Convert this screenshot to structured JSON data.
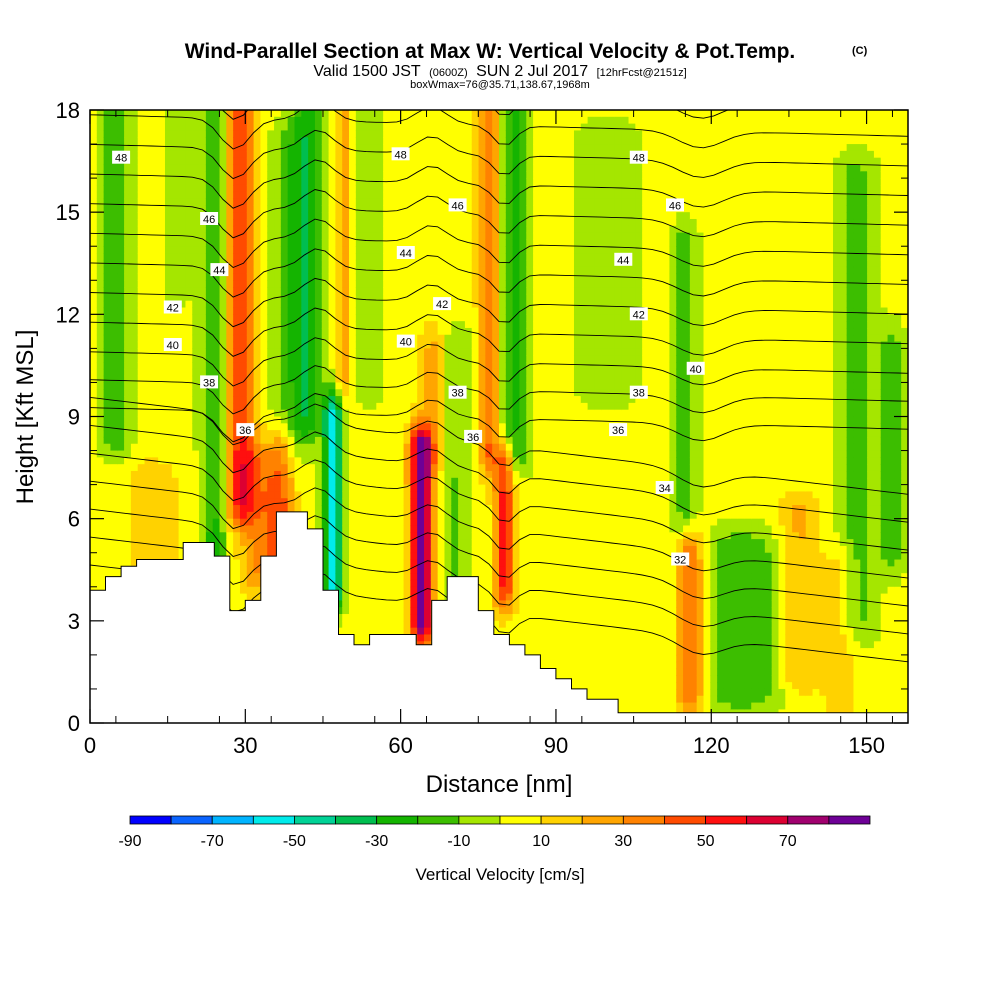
{
  "chart_data": {
    "type": "heatmap",
    "title": "Wind-Parallel Section at Max W: Vertical Velocity & Pot.Temp.",
    "title_mark": "(C)",
    "subtitle_parts": [
      "Valid 1500 JST",
      "(0600Z)",
      "SUN 2 Jul 2017",
      "[12hrFcst@2151z]"
    ],
    "subtitle2": "boxWmax=76@35.71,138.67,1968m",
    "xlabel": "Distance [nm]",
    "ylabel": "Height [Kft MSL]",
    "xlim": [
      0,
      158
    ],
    "ylim": [
      0,
      18
    ],
    "xticks": [
      "0",
      "30",
      "60",
      "90",
      "120",
      "150"
    ],
    "yticks": [
      "0",
      "3",
      "6",
      "9",
      "12",
      "15",
      "18"
    ],
    "colorbar": {
      "label": "Vertical Velocity [cm/s]",
      "tick_labels": [
        "-90",
        "-70",
        "-50",
        "-30",
        "-10",
        "10",
        "30",
        "50",
        "70"
      ],
      "levels": [
        -90,
        -80,
        -70,
        -60,
        -50,
        -40,
        -30,
        -20,
        -10,
        0,
        10,
        20,
        30,
        40,
        50,
        60,
        70,
        80
      ],
      "colors": [
        "#0000ff",
        "#0a64ff",
        "#00b4ff",
        "#00ebeb",
        "#00d296",
        "#00be50",
        "#14b400",
        "#3cbe00",
        "#a5e600",
        "#ffff00",
        "#ffd200",
        "#ffa500",
        "#ff8200",
        "#ff4b00",
        "#ff0f0f",
        "#dc0032",
        "#a0006e",
        "#6e0096"
      ]
    },
    "vertical_velocity_features": [
      {
        "x": 5,
        "ytop": 18,
        "ybot": 8.5,
        "w": 3,
        "peak": -22
      },
      {
        "x": 17,
        "ytop": 18,
        "ybot": 13,
        "w": 2.5,
        "peak": -12
      },
      {
        "x": 24,
        "ytop": 18,
        "ybot": 5,
        "w": 2.6,
        "peak": -28
      },
      {
        "x": 29,
        "ytop": 18,
        "ybot": 6.5,
        "w": 3,
        "peak": 45
      },
      {
        "x": 38,
        "ytop": 17,
        "ybot": 8,
        "w": 3.5,
        "peak": -15
      },
      {
        "x": 42,
        "ytop": 18,
        "ybot": 9,
        "w": 3,
        "peak": -30
      },
      {
        "x": 47,
        "ytop": 9,
        "ybot": 4,
        "w": 1.8,
        "peak": -62
      },
      {
        "x": 49,
        "ytop": 18,
        "ybot": 10,
        "w": 1.6,
        "peak": 20
      },
      {
        "x": 54,
        "ytop": 18,
        "ybot": 10,
        "w": 2.5,
        "peak": -14
      },
      {
        "x": 64,
        "ytop": 8,
        "ybot": 3,
        "w": 2.2,
        "peak": 78
      },
      {
        "x": 66,
        "ytop": 11,
        "ybot": 8,
        "w": 2.5,
        "peak": 18
      },
      {
        "x": 71,
        "ytop": 11,
        "ybot": 3,
        "w": 2.5,
        "peak": -15
      },
      {
        "x": 77,
        "ytop": 18,
        "ybot": 8,
        "w": 2,
        "peak": 35
      },
      {
        "x": 80,
        "ytop": 7.5,
        "ybot": 4,
        "w": 2,
        "peak": 48
      },
      {
        "x": 82,
        "ytop": 18,
        "ybot": 8,
        "w": 3,
        "peak": -26
      },
      {
        "x": 100,
        "ytop": 17,
        "ybot": 10,
        "w": 6,
        "peak": -14
      },
      {
        "x": 116,
        "ytop": 5,
        "ybot": 1,
        "w": 2.5,
        "peak": 45
      },
      {
        "x": 115,
        "ytop": 14,
        "ybot": 6,
        "w": 2.5,
        "peak": -20
      },
      {
        "x": 126,
        "ytop": 5,
        "ybot": 1,
        "w": 9,
        "peak": -22
      },
      {
        "x": 137,
        "ytop": 6,
        "ybot": 1.5,
        "w": 4,
        "peak": 20
      },
      {
        "x": 148,
        "ytop": 16,
        "ybot": 3,
        "w": 4,
        "peak": -18
      },
      {
        "x": 155,
        "ytop": 11,
        "ybot": 5,
        "w": 2.5,
        "peak": -18
      },
      {
        "x": 145,
        "ytop": 4.5,
        "ybot": 0,
        "w": 3,
        "peak": 15
      },
      {
        "x": 12,
        "ytop": 7,
        "ybot": 3.5,
        "w": 5,
        "peak": 14
      },
      {
        "x": 33,
        "ytop": 7.5,
        "ybot": 4.5,
        "w": 4,
        "peak": 28
      },
      {
        "x": 37,
        "ytop": 8,
        "ybot": 5,
        "w": 2.5,
        "peak": 30
      }
    ],
    "terrain": {
      "x": [
        0,
        3,
        6,
        9,
        12,
        15,
        18,
        21,
        24,
        27,
        30,
        33,
        36,
        39,
        42,
        45,
        48,
        51,
        54,
        57,
        60,
        63,
        66,
        69,
        72,
        75,
        78,
        81,
        84,
        87,
        90,
        93,
        96,
        99,
        102,
        105,
        108,
        111,
        114,
        117,
        120,
        123,
        126,
        129,
        132,
        135,
        138,
        141,
        144,
        147,
        150,
        153,
        156,
        158
      ],
      "height": [
        3.9,
        4.3,
        4.6,
        4.8,
        4.8,
        4.8,
        5.3,
        5.3,
        4.9,
        3.3,
        3.6,
        4.9,
        6.2,
        6.2,
        5.7,
        3.9,
        2.6,
        2.3,
        2.6,
        2.6,
        2.6,
        2.3,
        3.6,
        4.3,
        4.3,
        3.3,
        2.6,
        2.3,
        2.0,
        1.6,
        1.3,
        1.0,
        0.7,
        0.7,
        0.3,
        0.3,
        0.3,
        0.3,
        0.3,
        0.3,
        0.3,
        0.3,
        0.3,
        0.3,
        0.3,
        0.3,
        0.3,
        0.3,
        0.3,
        0.3,
        0.3,
        0.3,
        0.3,
        0.3
      ]
    },
    "isentropes": {
      "levels": [
        31,
        32,
        33,
        34,
        35,
        36,
        37,
        38,
        39,
        40,
        41,
        42,
        43,
        44,
        45,
        46,
        47,
        48,
        49
      ],
      "labels": [
        {
          "text": "48",
          "x": 6,
          "y": 16.6
        },
        {
          "text": "48",
          "x": 60,
          "y": 16.7
        },
        {
          "text": "48",
          "x": 106,
          "y": 16.6
        },
        {
          "text": "46",
          "x": 23,
          "y": 14.8
        },
        {
          "text": "46",
          "x": 71,
          "y": 15.2
        },
        {
          "text": "46",
          "x": 113,
          "y": 15.2
        },
        {
          "text": "44",
          "x": 25,
          "y": 13.3
        },
        {
          "text": "44",
          "x": 61,
          "y": 13.8
        },
        {
          "text": "44",
          "x": 103,
          "y": 13.6
        },
        {
          "text": "42",
          "x": 16,
          "y": 12.2
        },
        {
          "text": "42",
          "x": 68,
          "y": 12.3
        },
        {
          "text": "42",
          "x": 106,
          "y": 12.0
        },
        {
          "text": "40",
          "x": 16,
          "y": 11.1
        },
        {
          "text": "40",
          "x": 61,
          "y": 11.2
        },
        {
          "text": "40",
          "x": 117,
          "y": 10.4
        },
        {
          "text": "38",
          "x": 23,
          "y": 10.0
        },
        {
          "text": "38",
          "x": 71,
          "y": 9.7
        },
        {
          "text": "38",
          "x": 106,
          "y": 9.7
        },
        {
          "text": "36",
          "x": 30,
          "y": 8.6
        },
        {
          "text": "36",
          "x": 74,
          "y": 8.4
        },
        {
          "text": "36",
          "x": 102,
          "y": 8.6
        },
        {
          "text": "34",
          "x": 111,
          "y": 6.9
        },
        {
          "text": "32",
          "x": 114,
          "y": 4.8
        }
      ]
    },
    "grid": false,
    "legend": "bottom colorbar"
  }
}
